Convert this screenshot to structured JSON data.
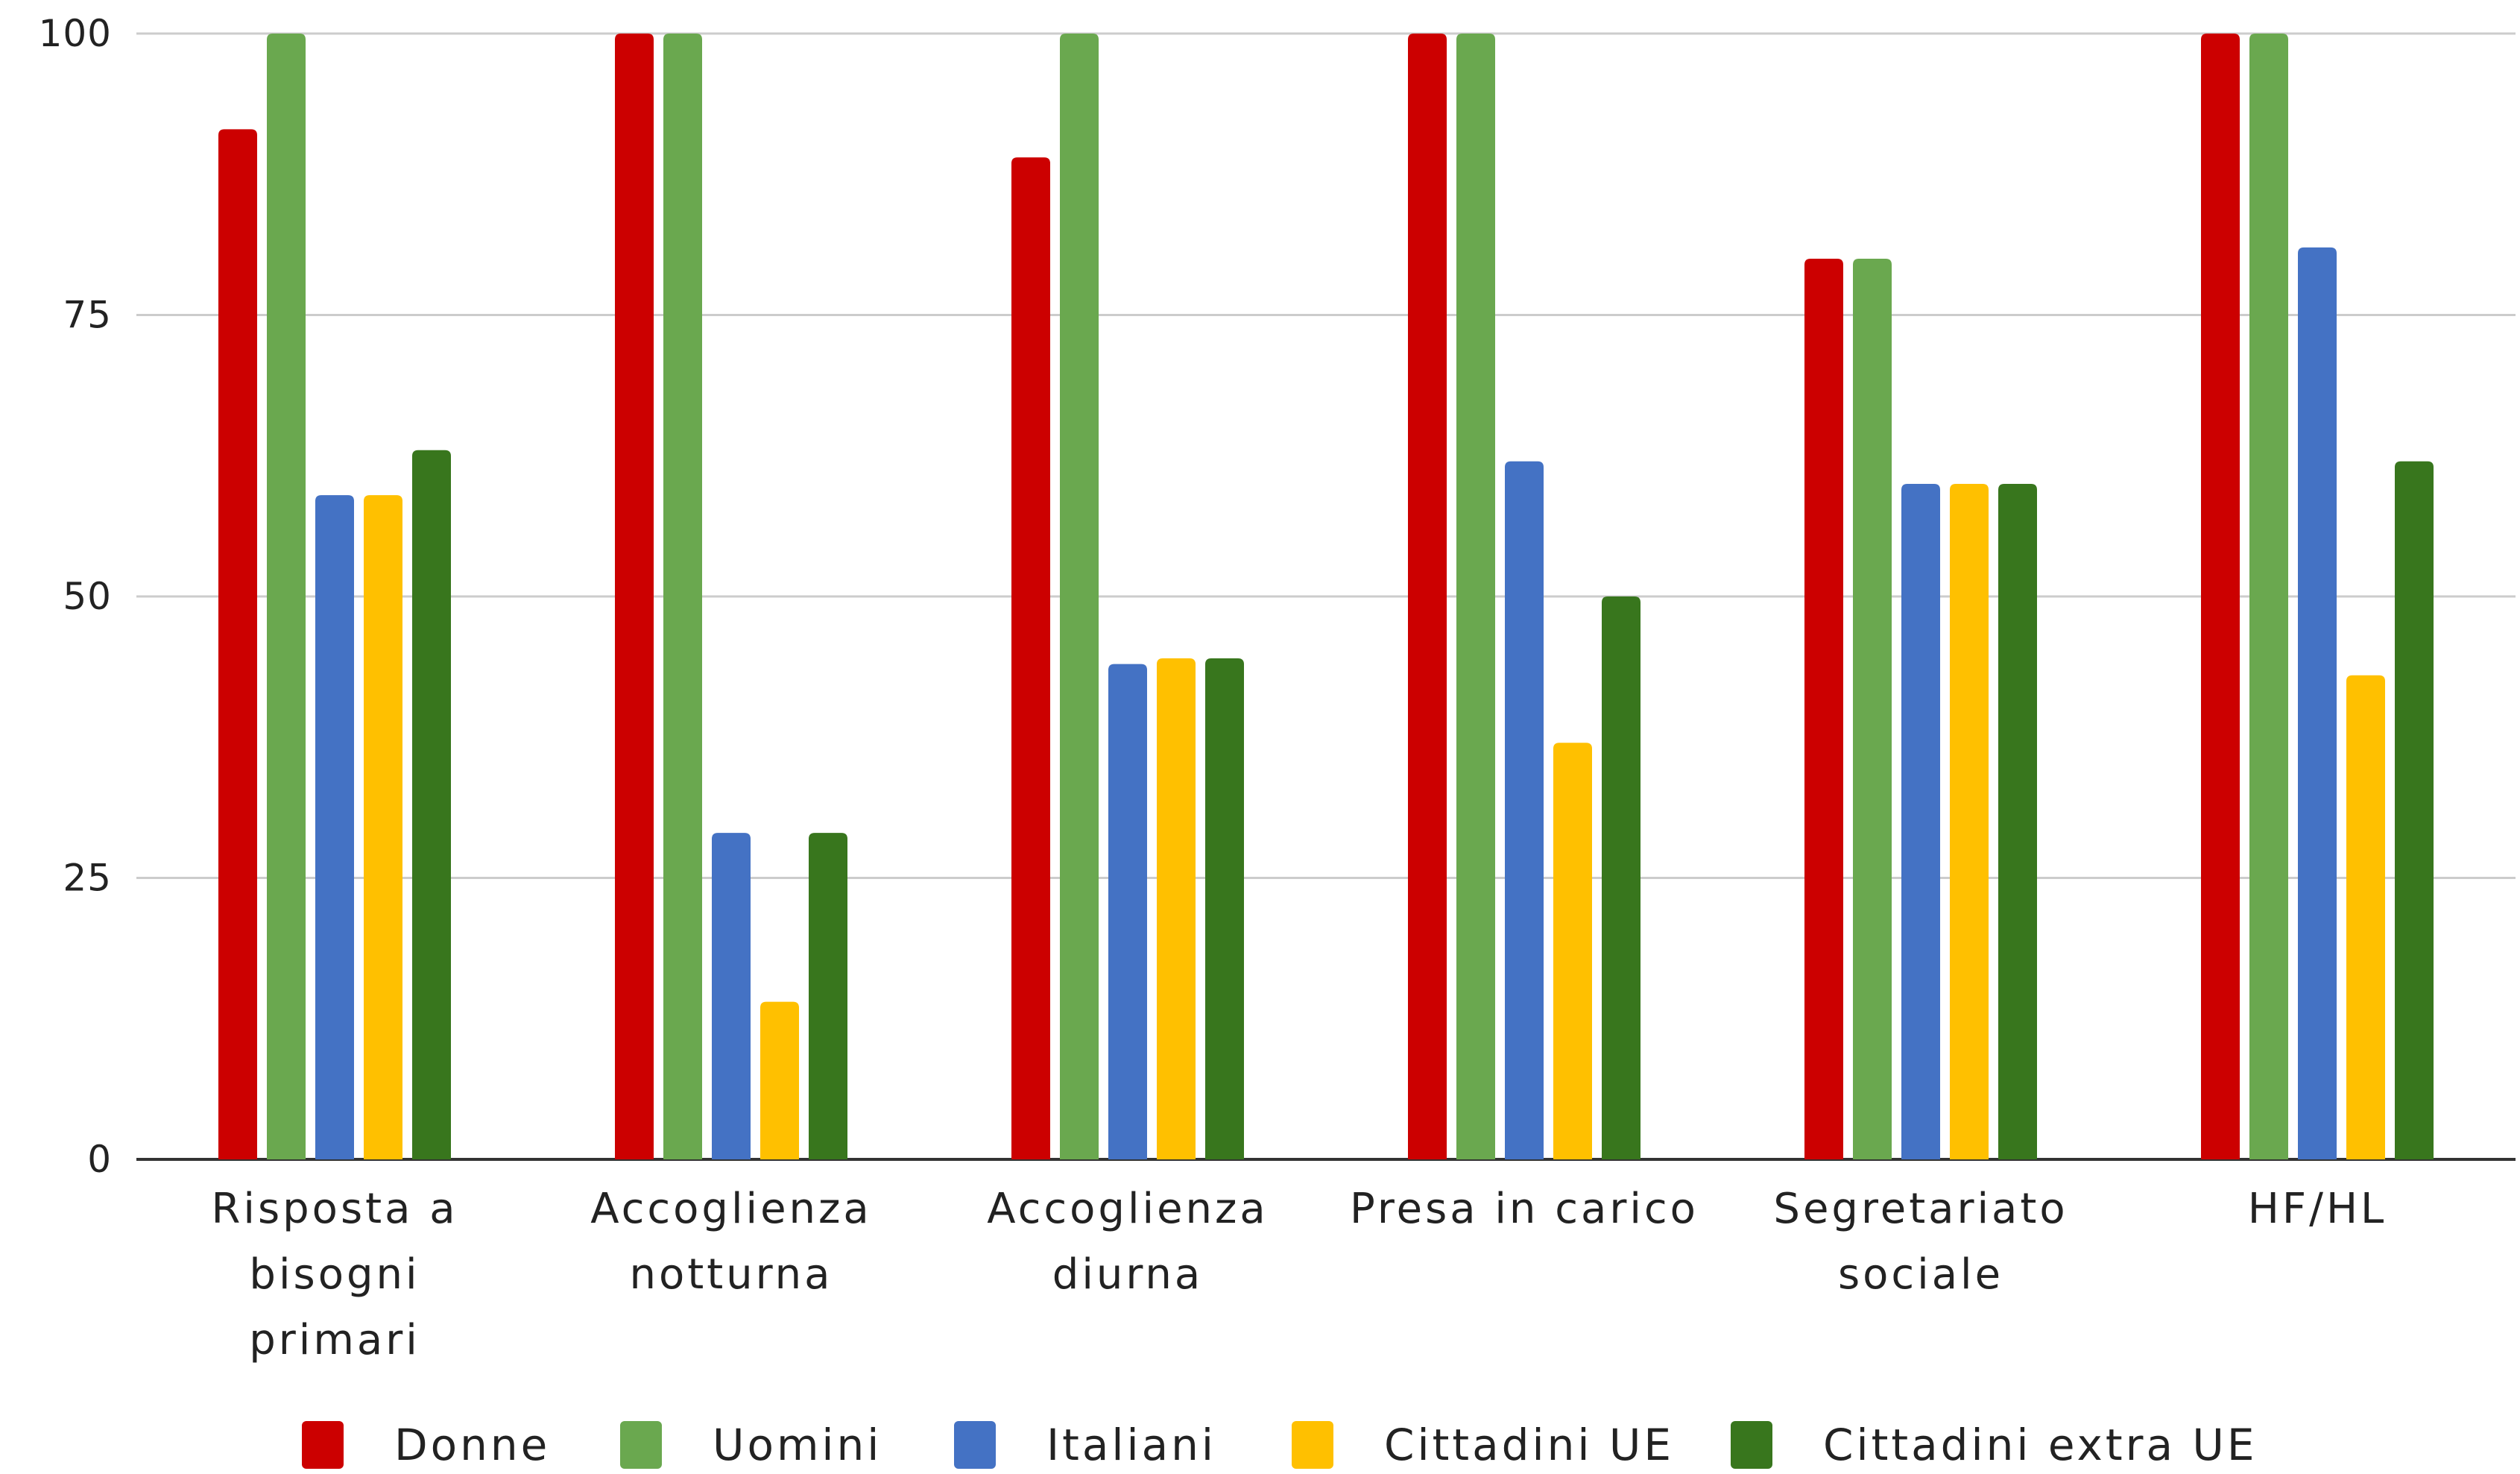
{
  "chart_data": {
    "type": "bar",
    "title": "",
    "xlabel": "",
    "ylabel": "",
    "ylim": [
      0,
      100
    ],
    "yticks": [
      0,
      25,
      50,
      75,
      100
    ],
    "grid": true,
    "legend_position": "bottom",
    "categories": [
      [
        "Risposta a",
        "bisogni",
        "primari"
      ],
      [
        "Accoglienza",
        "notturna"
      ],
      [
        "Accoglienza",
        "diurna"
      ],
      [
        "Presa in carico"
      ],
      [
        "Segretariato",
        "sociale"
      ],
      [
        "HF/HL"
      ]
    ],
    "series": [
      {
        "name": "Donne",
        "color": "#cc0000",
        "values": [
          91.5,
          100,
          89,
          100,
          80,
          100
        ]
      },
      {
        "name": "Uomini",
        "color": "#6aa84f",
        "values": [
          100,
          100,
          100,
          100,
          80,
          100
        ]
      },
      {
        "name": "Italiani",
        "color": "#4472c4",
        "values": [
          59,
          29,
          44,
          62,
          60,
          81
        ]
      },
      {
        "name": "Cittadini UE",
        "color": "#ffc000",
        "values": [
          59,
          14,
          44.5,
          37,
          60,
          43
        ]
      },
      {
        "name": "Cittadini extra UE",
        "color": "#38761d",
        "values": [
          63,
          29,
          44.5,
          50,
          60,
          62
        ]
      }
    ]
  }
}
